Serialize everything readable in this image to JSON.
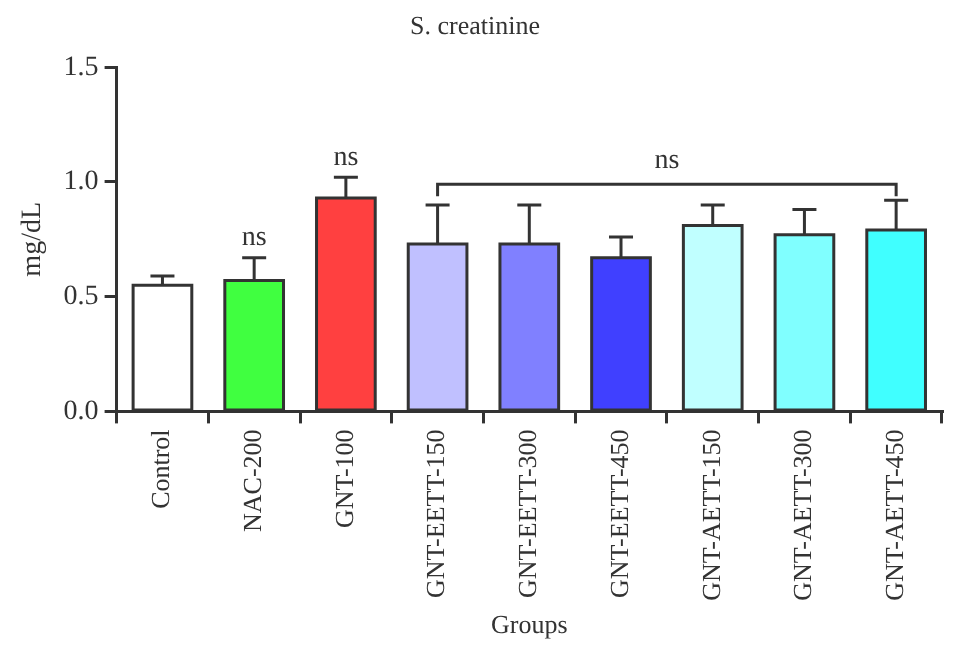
{
  "chart_data": {
    "type": "bar",
    "title": "S. creatinine",
    "xlabel": "Groups",
    "ylabel": "mg/dL",
    "categories": [
      "Control",
      "NAC-200",
      "GNT-100",
      "GNT-EETT-150",
      "GNT-EETT-300",
      "GNT-EETT-450",
      "GNT-AETT-150",
      "GNT-AETT-300",
      "GNT-AETT-450"
    ],
    "values": [
      0.55,
      0.57,
      0.93,
      0.73,
      0.73,
      0.67,
      0.81,
      0.77,
      0.79
    ],
    "errors": [
      [
        0.55,
        0.59
      ],
      [
        0.57,
        0.67
      ],
      [
        0.93,
        1.02
      ],
      [
        0.73,
        0.9
      ],
      [
        0.73,
        0.9
      ],
      [
        0.67,
        0.76
      ],
      [
        0.81,
        0.9
      ],
      [
        0.77,
        0.88
      ],
      [
        0.79,
        0.92
      ]
    ],
    "colors": [
      "#ffffff",
      "#40ff40",
      "#ff4040",
      "#c0c0ff",
      "#8080ff",
      "#4040ff",
      "#c0ffff",
      "#80ffff",
      "#40ffff"
    ],
    "ylim": [
      0,
      1.5
    ],
    "yticks": [
      {
        "value": 0,
        "label": "0.0"
      },
      {
        "value": 0.5,
        "label": "0.5"
      },
      {
        "value": 1,
        "label": "1.0"
      },
      {
        "value": 1.5,
        "label": "1.5"
      }
    ],
    "grid": false,
    "legend": false,
    "annotations": [
      {
        "text": "ns",
        "x": "NAC-200",
        "y": 0.67
      },
      {
        "text": "ns",
        "x": "GNT-100",
        "y": 1.02
      },
      "ns"
    ]
  }
}
